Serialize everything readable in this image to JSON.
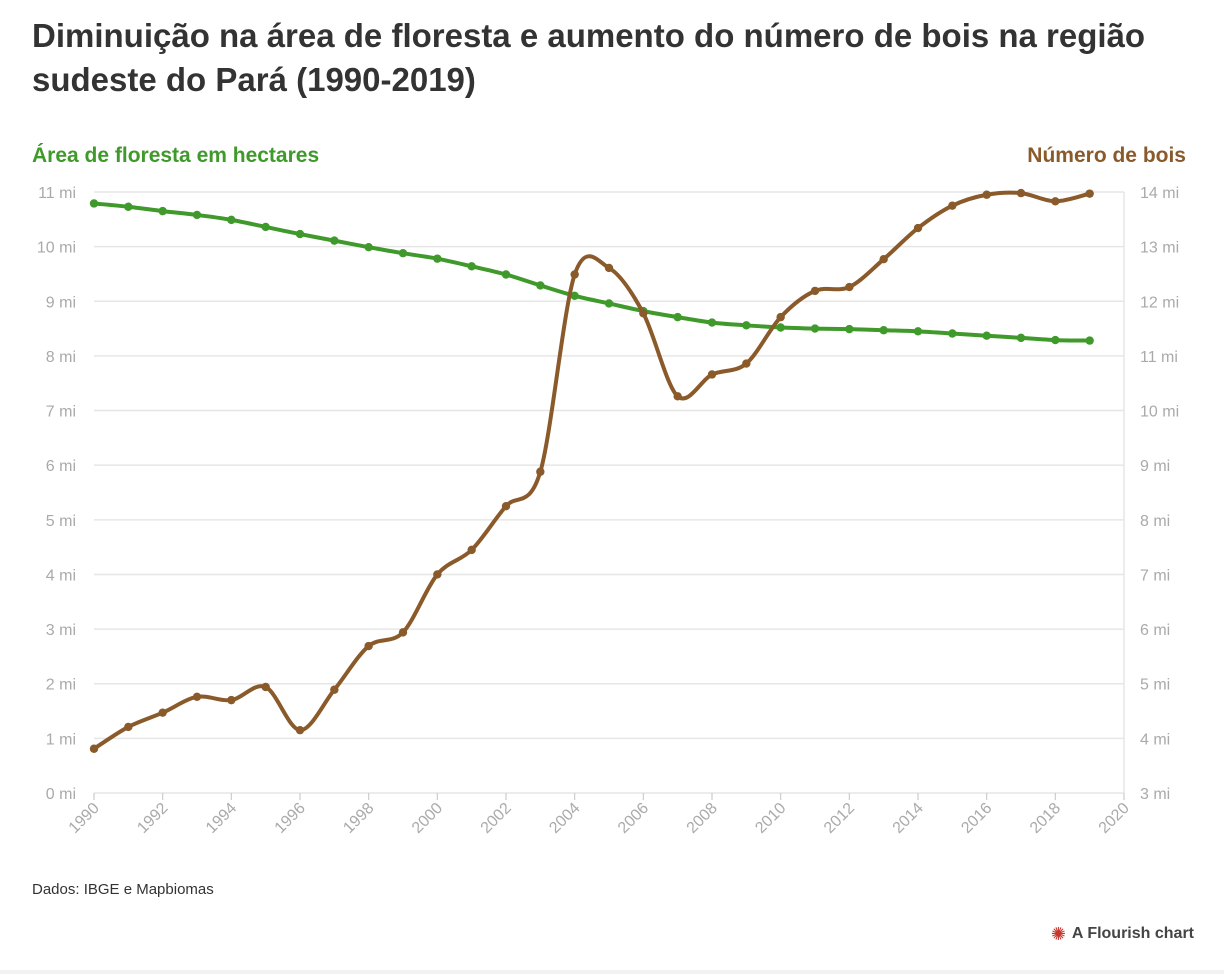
{
  "title": "Diminuição na área de floresta e aumento do número de bois na região sudeste do Pará (1990-2019)",
  "source": "Dados: IBGE e Mapbiomas",
  "credit": "A Flourish chart",
  "colors": {
    "forest": "#3f9a2b",
    "cattle": "#8a5a2b",
    "grid": "#e6e6e6",
    "tick": "#aaaaaa",
    "title": "#333333"
  },
  "chart_data": {
    "type": "line",
    "title": "Diminuição na área de floresta e aumento do número de bois na região sudeste do Pará (1990-2019)",
    "x": [
      1990,
      1991,
      1992,
      1993,
      1994,
      1995,
      1996,
      1997,
      1998,
      1999,
      2000,
      2001,
      2002,
      2003,
      2004,
      2005,
      2006,
      2007,
      2008,
      2009,
      2010,
      2011,
      2012,
      2013,
      2014,
      2015,
      2016,
      2017,
      2018,
      2019
    ],
    "xlim": [
      1990,
      2020
    ],
    "x_ticks": [
      "1990",
      "1992",
      "1994",
      "1996",
      "1998",
      "2000",
      "2002",
      "2004",
      "2006",
      "2008",
      "2010",
      "2012",
      "2014",
      "2016",
      "2018",
      "2020"
    ],
    "y_left": {
      "label": "Área de floresta em hectares",
      "lim": [
        0,
        11000000
      ],
      "ticks": [
        "0 mi",
        "1 mi",
        "2 mi",
        "3 mi",
        "4 mi",
        "5 mi",
        "6 mi",
        "7 mi",
        "8 mi",
        "9 mi",
        "10 mi",
        "11 mi"
      ]
    },
    "y_right": {
      "label": "Número de bois",
      "lim": [
        3000000,
        14000000
      ],
      "ticks": [
        "3 mi",
        "4 mi",
        "5 mi",
        "6 mi",
        "7 mi",
        "8 mi",
        "9 mi",
        "10 mi",
        "11 mi",
        "12 mi",
        "13 mi",
        "14 mi"
      ]
    },
    "series": [
      {
        "name": "Área de floresta em hectares",
        "axis": "left",
        "color": "#3f9a2b",
        "values": [
          10790000,
          10730000,
          10650000,
          10580000,
          10490000,
          10360000,
          10230000,
          10110000,
          9990000,
          9880000,
          9780000,
          9640000,
          9490000,
          9290000,
          9100000,
          8960000,
          8820000,
          8710000,
          8610000,
          8560000,
          8520000,
          8500000,
          8490000,
          8470000,
          8450000,
          8410000,
          8370000,
          8330000,
          8290000,
          8280000
        ]
      },
      {
        "name": "Número de bois",
        "axis": "right",
        "color": "#8a5a2b",
        "values": [
          3810000,
          4210000,
          4470000,
          4760000,
          4700000,
          4940000,
          4150000,
          4890000,
          5690000,
          5940000,
          7000000,
          7450000,
          8250000,
          8880000,
          12490000,
          12610000,
          11780000,
          10260000,
          10660000,
          10860000,
          11710000,
          12190000,
          12260000,
          12770000,
          13340000,
          13750000,
          13950000,
          13980000,
          13830000,
          13970000
        ]
      }
    ]
  }
}
